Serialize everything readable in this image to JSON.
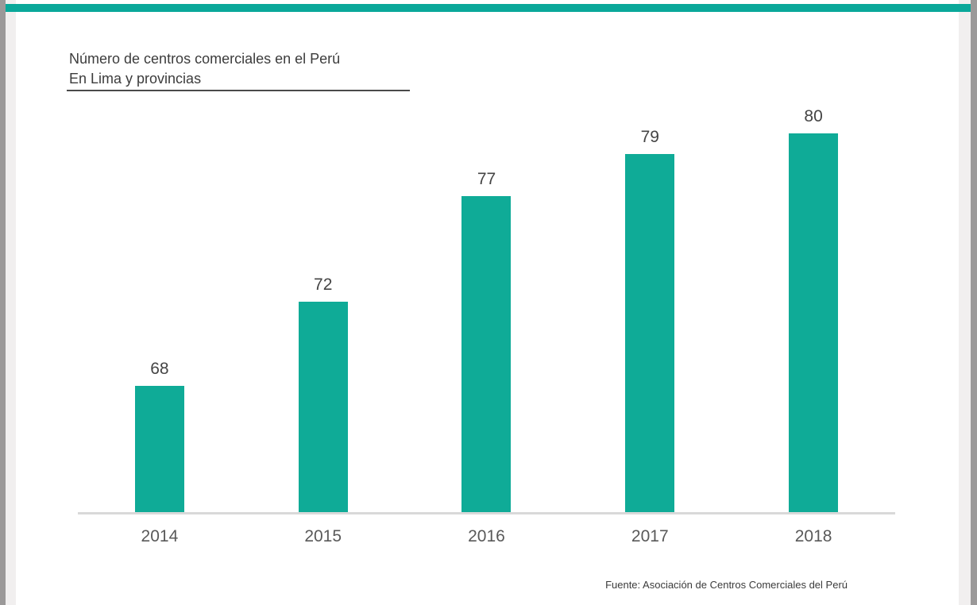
{
  "page": {
    "accent_color": "#0aa89a",
    "frame_dark_color": "#9b9999",
    "frame_light_color": "#f1efef"
  },
  "chart_data": {
    "type": "bar",
    "title": "Número de centros comerciales en el Perú",
    "subtitle": "En Lima y provincias",
    "categories": [
      "2014",
      "2015",
      "2016",
      "2017",
      "2018"
    ],
    "values": [
      68,
      72,
      77,
      79,
      80
    ],
    "bar_color": "#0fab97",
    "axis_line_color": "#d9d9d9",
    "value_label_color": "#444444",
    "tick_label_color": "#595959",
    "ylim": [
      62,
      82
    ],
    "grid": false,
    "legend": "none",
    "data_labels": "above bars",
    "xlabel": "",
    "ylabel": "",
    "source": "Fuente: Asociación de Centros Comerciales del Perú"
  }
}
